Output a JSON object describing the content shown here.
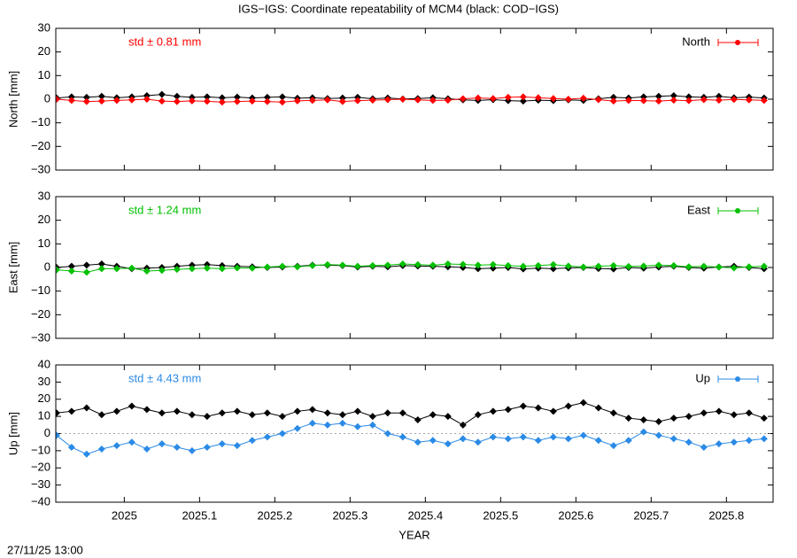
{
  "title": "IGS−IGS: Coordinate repeatability of MCM4 (black: COD−IGS)",
  "timestamp": "27/11/25 13:00",
  "chart_data": [
    {
      "type": "scatter",
      "ylabel": "North [mm]",
      "annotation": "std ± 0.81 mm",
      "xlim": [
        2024.909,
        2025.862
      ],
      "ylim": [
        -30,
        30
      ],
      "yticks": [
        {
          "value": -30,
          "label": "−30"
        },
        {
          "value": -20,
          "label": "−20"
        },
        {
          "value": -10,
          "label": "−10"
        },
        0,
        10,
        20,
        30
      ],
      "x": [
        2024.91,
        2024.93,
        2024.95,
        2024.97,
        2024.99,
        2025.01,
        2025.03,
        2025.05,
        2025.07,
        2025.09,
        2025.11,
        2025.13,
        2025.15,
        2025.17,
        2025.19,
        2025.21,
        2025.23,
        2025.25,
        2025.27,
        2025.29,
        2025.31,
        2025.33,
        2025.35,
        2025.37,
        2025.39,
        2025.41,
        2025.43,
        2025.45,
        2025.47,
        2025.49,
        2025.51,
        2025.53,
        2025.55,
        2025.57,
        2025.59,
        2025.61,
        2025.63,
        2025.65,
        2025.67,
        2025.69,
        2025.71,
        2025.73,
        2025.75,
        2025.77,
        2025.79,
        2025.81,
        2025.83,
        2025.85
      ],
      "series": [
        {
          "color": "#000000",
          "values": [
            0.5,
            1,
            0.8,
            1.2,
            0.6,
            1,
            1.5,
            2,
            1.2,
            0.8,
            1,
            0.6,
            0.9,
            0.5,
            0.8,
            1,
            0.4,
            0.6,
            0.3,
            0.5,
            0.8,
            0.2,
            0.5,
            0.1,
            0.3,
            0.6,
            0.2,
            -0.3,
            -0.5,
            -0.2,
            -0.6,
            -0.8,
            -0.4,
            -0.6,
            -0.3,
            -0.5,
            0.2,
            0.8,
            0.5,
            1,
            1.2,
            1.5,
            1,
            0.8,
            1.2,
            0.6,
            0.9,
            0.5
          ]
        },
        {
          "name": "North",
          "color": "#ff0000",
          "values": [
            0,
            -0.5,
            -1,
            -0.8,
            -0.5,
            -0.3,
            0,
            -0.8,
            -1,
            -0.7,
            -0.9,
            -1.2,
            -1,
            -0.8,
            -1,
            -1.2,
            -0.7,
            -0.5,
            -0.3,
            -1,
            -0.6,
            -0.4,
            -0.2,
            0,
            -0.3,
            -0.5,
            -0.4,
            0.2,
            0.5,
            0.3,
            0.8,
            1,
            0.6,
            0.3,
            0,
            0.4,
            -0.2,
            -0.8,
            -0.5,
            -0.6,
            -0.8,
            -0.4,
            -0.6,
            -0.2,
            -0.4,
            -0.1,
            -0.3,
            -0.5
          ]
        }
      ]
    },
    {
      "type": "scatter",
      "ylabel": "East [mm]",
      "annotation": "std ± 1.24 mm",
      "xlim": [
        2024.909,
        2025.862
      ],
      "ylim": [
        -30,
        30
      ],
      "yticks": [
        {
          "value": -30,
          "label": "−30"
        },
        {
          "value": -20,
          "label": "−20"
        },
        {
          "value": -10,
          "label": "−10"
        },
        0,
        10,
        20,
        30
      ],
      "x": [
        2024.91,
        2024.93,
        2024.95,
        2024.97,
        2024.99,
        2025.01,
        2025.03,
        2025.05,
        2025.07,
        2025.09,
        2025.11,
        2025.13,
        2025.15,
        2025.17,
        2025.19,
        2025.21,
        2025.23,
        2025.25,
        2025.27,
        2025.29,
        2025.31,
        2025.33,
        2025.35,
        2025.37,
        2025.39,
        2025.41,
        2025.43,
        2025.45,
        2025.47,
        2025.49,
        2025.51,
        2025.53,
        2025.55,
        2025.57,
        2025.59,
        2025.61,
        2025.63,
        2025.65,
        2025.67,
        2025.69,
        2025.71,
        2025.73,
        2025.75,
        2025.77,
        2025.79,
        2025.81,
        2025.83,
        2025.85
      ],
      "series": [
        {
          "color": "#000000",
          "values": [
            0,
            0.5,
            1,
            1.5,
            0.5,
            -0.5,
            -0.3,
            0,
            0.5,
            1,
            1.2,
            0.8,
            0.5,
            0.3,
            0,
            0.2,
            0.5,
            1,
            1,
            0.8,
            0.2,
            0.5,
            0.3,
            0.8,
            0.6,
            0.5,
            0.3,
            0,
            -0.5,
            -0.3,
            0,
            -0.6,
            -0.3,
            -0.5,
            -0.2,
            0,
            -0.4,
            -0.6,
            0,
            -0.3,
            0.2,
            0.5,
            0,
            -0.3,
            0.2,
            0.5,
            0,
            -0.5
          ]
        },
        {
          "name": "East",
          "color": "#00c000",
          "values": [
            -1,
            -1.5,
            -2,
            -0.5,
            -0.5,
            -0.3,
            -1.5,
            -1.2,
            -0.8,
            -0.5,
            -0.3,
            -0.5,
            -0.2,
            -0.3,
            0.2,
            0.5,
            0.3,
            0.8,
            1.2,
            1,
            0.5,
            0.8,
            1,
            1.5,
            1.2,
            1,
            1.5,
            1.3,
            1,
            1.2,
            0.8,
            0.5,
            0.8,
            1.2,
            0.6,
            0.2,
            0.5,
            0.8,
            0.4,
            0.6,
            1,
            0.8,
            0.3,
            0.5,
            0.2,
            -0.2,
            0.3,
            0.5
          ]
        }
      ]
    },
    {
      "type": "scatter",
      "ylabel": "Up [mm]",
      "xlabel": "YEAR",
      "annotation": "std ± 4.43 mm",
      "xlim": [
        2024.909,
        2025.862
      ],
      "ylim": [
        -40,
        40
      ],
      "xticks": [
        2025,
        2025.1,
        2025.2,
        2025.3,
        2025.4,
        2025.5,
        2025.6,
        2025.7,
        2025.8
      ],
      "yticks": [
        {
          "value": -40,
          "label": "−40"
        },
        {
          "value": -30,
          "label": "−30"
        },
        {
          "value": -20,
          "label": "−20"
        },
        {
          "value": -10,
          "label": "−10"
        },
        0,
        10,
        20,
        30,
        40
      ],
      "x": [
        2024.91,
        2024.93,
        2024.95,
        2024.97,
        2024.99,
        2025.01,
        2025.03,
        2025.05,
        2025.07,
        2025.09,
        2025.11,
        2025.13,
        2025.15,
        2025.17,
        2025.19,
        2025.21,
        2025.23,
        2025.25,
        2025.27,
        2025.29,
        2025.31,
        2025.33,
        2025.35,
        2025.37,
        2025.39,
        2025.41,
        2025.43,
        2025.45,
        2025.47,
        2025.49,
        2025.51,
        2025.53,
        2025.55,
        2025.57,
        2025.59,
        2025.61,
        2025.63,
        2025.65,
        2025.67,
        2025.69,
        2025.71,
        2025.73,
        2025.75,
        2025.77,
        2025.79,
        2025.81,
        2025.83,
        2025.85
      ],
      "series": [
        {
          "color": "#000000",
          "values": [
            12,
            13,
            15,
            11,
            13,
            16,
            14,
            12,
            13,
            11,
            10,
            12,
            13,
            11,
            12,
            10,
            13,
            14,
            12,
            11,
            13,
            10,
            12,
            12,
            8,
            11,
            10,
            5,
            11,
            13,
            14,
            16,
            15,
            13,
            16,
            18,
            15,
            12,
            9,
            8,
            7,
            9,
            10,
            12,
            13,
            11,
            12,
            9
          ]
        },
        {
          "name": "Up",
          "color": "#2a8ae6",
          "values": [
            -1,
            -8,
            -12,
            -9,
            -7,
            -5,
            -9,
            -6,
            -8,
            -10,
            -8,
            -6,
            -7,
            -4,
            -2,
            0,
            3,
            6,
            5,
            6,
            4,
            5,
            0,
            -2,
            -5,
            -4,
            -6,
            -3,
            -5,
            -2,
            -3,
            -2,
            -4,
            -2,
            -3,
            -1,
            -4,
            -7,
            -4,
            1,
            -1,
            -3,
            -5,
            -8,
            -6,
            -5,
            -4,
            -3
          ]
        }
      ]
    }
  ]
}
